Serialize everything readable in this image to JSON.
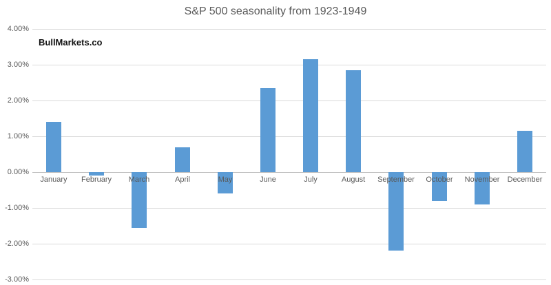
{
  "header": {
    "title": "S&P 500 seasonality from 1923-1949"
  },
  "watermark": "BullMarkets.co",
  "chart_data": {
    "type": "bar",
    "title": "S&P 500 seasonality from 1923-1949",
    "categories": [
      "January",
      "February",
      "March",
      "April",
      "May",
      "June",
      "July",
      "August",
      "September",
      "October",
      "November",
      "December"
    ],
    "values": [
      1.4,
      -0.1,
      -1.55,
      0.7,
      -0.6,
      2.35,
      3.15,
      2.85,
      -2.2,
      -0.8,
      -0.9,
      1.15
    ],
    "unit": "%",
    "xlabel": "",
    "ylabel": "",
    "ylim": [
      -3.0,
      4.0
    ],
    "ytick_step": 1.0,
    "ytick_labels": [
      "4.00%",
      "3.00%",
      "2.00%",
      "1.00%",
      "0.00%",
      "-1.00%",
      "-2.00%",
      "-3.00%"
    ],
    "ytick_values": [
      4,
      3,
      2,
      1,
      0,
      -1,
      -2,
      -3
    ],
    "grid": true,
    "legend": "none",
    "colors": {
      "bar": "#5b9bd5",
      "gridline": "#d9d9d9",
      "axis_line": "#bfbfbf",
      "tick_label": "#595959",
      "title": "#595959",
      "watermark_text": "#111111",
      "background": "#ffffff"
    }
  }
}
